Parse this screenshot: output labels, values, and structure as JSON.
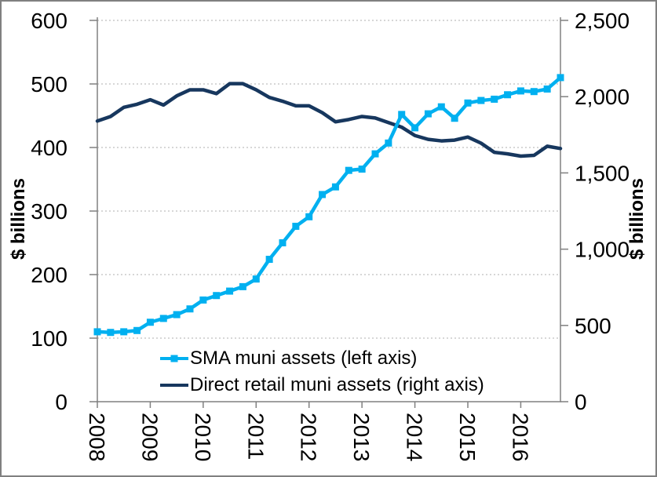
{
  "chart_data": {
    "type": "line",
    "frequency": "quarterly",
    "points_per_year": 4,
    "grid": "horizontal-dotted",
    "legend_position": "inside-bottom-center",
    "x": {
      "tick_labels": [
        "2008",
        "2009",
        "2010",
        "2011",
        "2012",
        "2013",
        "2014",
        "2015",
        "2016"
      ]
    },
    "y_left": {
      "label": "$ billions",
      "min": 0,
      "max": 600,
      "tick_values": [
        600,
        500,
        400,
        300,
        200,
        100,
        0
      ],
      "tick_labels": [
        "600",
        "500",
        "400",
        "300",
        "200",
        "100",
        "0"
      ]
    },
    "y_right": {
      "label": "$ billions",
      "min": 0,
      "max": 2500,
      "tick_values": [
        2500,
        2000,
        1500,
        1000,
        500,
        0
      ],
      "tick_labels": [
        "2,500",
        "2,000",
        "1,500",
        "1,000",
        "500",
        "0"
      ]
    },
    "series": [
      {
        "name": "SMA muni assets (left axis)",
        "axis": "left",
        "color": "#00B0F0",
        "marker": "square",
        "values": [
          110,
          109,
          110,
          112,
          125,
          131,
          137,
          146,
          160,
          167,
          174,
          181,
          193,
          224,
          250,
          276,
          291,
          326,
          338,
          364,
          366,
          390,
          407,
          452,
          431,
          453,
          464,
          446,
          470,
          474,
          476,
          483,
          489,
          488,
          492,
          510
        ]
      },
      {
        "name": "Direct retail muni assets (right axis)",
        "axis": "right",
        "color": "#17375E",
        "marker": "none",
        "values": [
          1840,
          1870,
          1930,
          1950,
          1980,
          1945,
          2005,
          2045,
          2045,
          2020,
          2085,
          2085,
          2045,
          1995,
          1970,
          1940,
          1940,
          1895,
          1835,
          1850,
          1870,
          1860,
          1830,
          1800,
          1745,
          1720,
          1710,
          1715,
          1735,
          1695,
          1635,
          1625,
          1610,
          1615,
          1675,
          1660
        ]
      }
    ]
  },
  "colors": {
    "gridline": "#BFBFBF",
    "axis": "#808080",
    "text": "#000000",
    "frame_border": "#808080",
    "background": "#FFFFFF"
  }
}
